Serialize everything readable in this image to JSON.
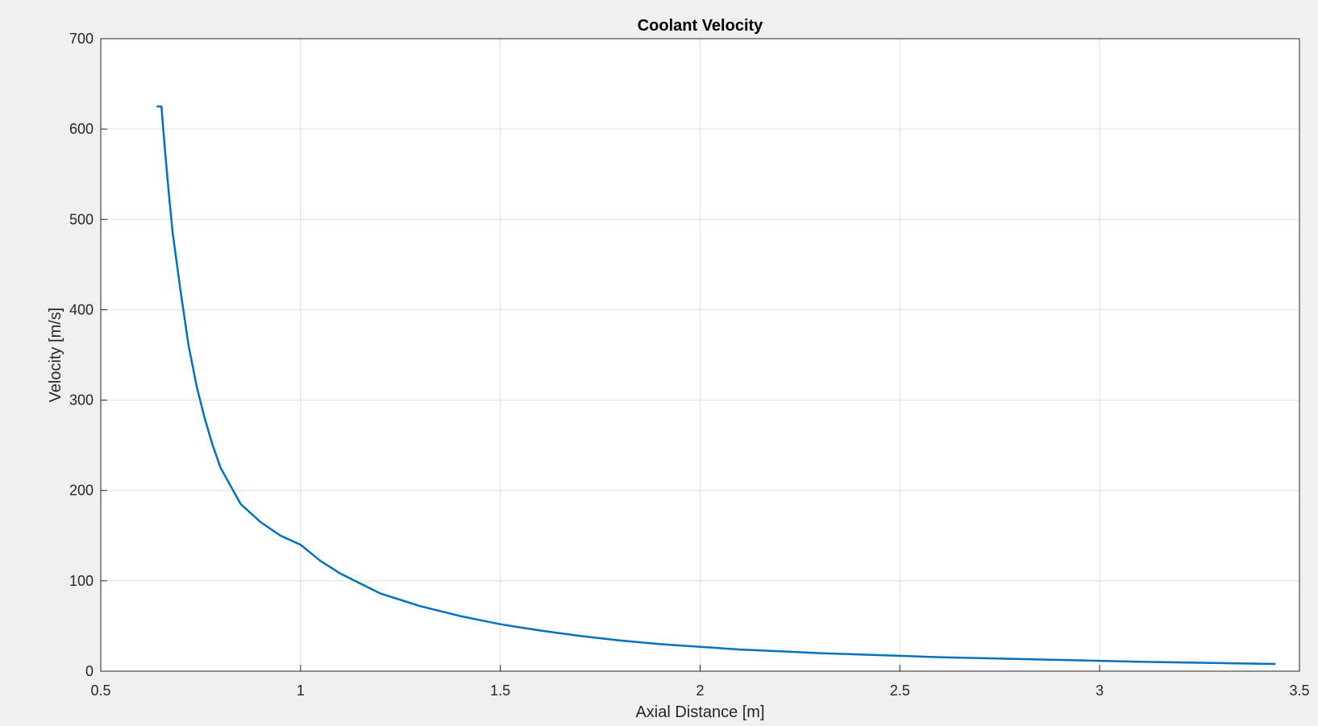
{
  "chart_data": {
    "type": "line",
    "title": "Coolant Velocity",
    "xlabel": "Axial Distance [m]",
    "ylabel": "Velocity [m/s]",
    "xlim": [
      0.5,
      3.5
    ],
    "ylim": [
      0,
      700
    ],
    "xticks": [
      0.5,
      1,
      1.5,
      2,
      2.5,
      3,
      3.5
    ],
    "xtick_labels": [
      "0.5",
      "1",
      "1.5",
      "2",
      "2.5",
      "3",
      "3.5"
    ],
    "yticks": [
      0,
      100,
      200,
      300,
      400,
      500,
      600,
      700
    ],
    "ytick_labels": [
      "0",
      "100",
      "200",
      "300",
      "400",
      "500",
      "600",
      "700"
    ],
    "grid": true,
    "legend": "none",
    "colors": {
      "line": "#0072bd",
      "grid": "#dedede",
      "axes": "#262626",
      "plot_bg": "#ffffff",
      "figure_bg": "#f0f0f0"
    },
    "series": [
      {
        "x": [
          0.64,
          0.652,
          0.66,
          0.67,
          0.68,
          0.7,
          0.72,
          0.74,
          0.76,
          0.78,
          0.8,
          0.85,
          0.9,
          0.95,
          1.0,
          1.05,
          1.1,
          1.2,
          1.3,
          1.4,
          1.5,
          1.6,
          1.7,
          1.8,
          1.9,
          2.0,
          2.1,
          2.2,
          2.3,
          2.4,
          2.5,
          2.6,
          2.7,
          2.8,
          2.9,
          3.0,
          3.1,
          3.2,
          3.3,
          3.44
        ],
        "y": [
          625,
          625,
          580,
          530,
          485,
          420,
          360,
          315,
          280,
          250,
          225,
          185,
          165,
          150,
          140,
          122,
          108,
          86,
          72,
          61,
          52,
          45,
          39,
          34,
          30,
          27,
          24,
          22,
          20,
          18.5,
          17,
          15.5,
          14.5,
          13.5,
          12.5,
          11.5,
          10.5,
          9.7,
          9,
          8
        ]
      }
    ]
  }
}
